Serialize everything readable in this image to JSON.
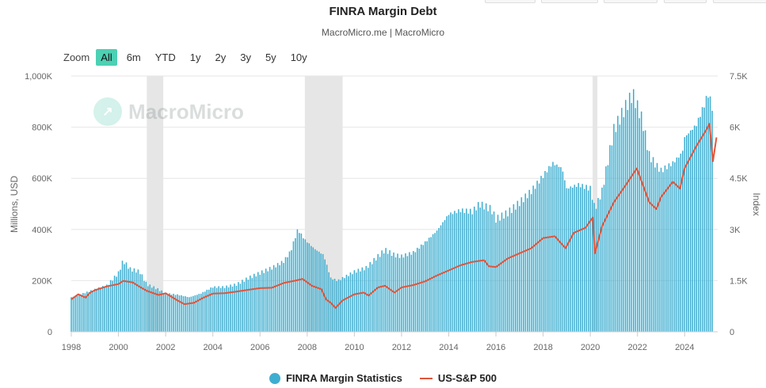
{
  "header": {
    "title": "FINRA Margin Debt",
    "subtitle": "MacroMicro.me | MacroMicro"
  },
  "zoom": {
    "label": "Zoom",
    "buttons": [
      "All",
      "6m",
      "YTD",
      "1y",
      "2y",
      "3y",
      "5y",
      "10y"
    ],
    "active": "All"
  },
  "watermark": {
    "text": "MacroMicro"
  },
  "legend": {
    "series1": "FINRA Margin Statistics",
    "series2": "US-S&P 500"
  },
  "colors": {
    "bar": "#3eaed0",
    "line": "#e0553c",
    "recession": "#e6e6e6",
    "grid": "#e6e6e6"
  },
  "chart_data": {
    "type": "bar",
    "title": "FINRA Margin Debt",
    "subtitle": "MacroMicro.me | MacroMicro",
    "ylabel": "Millions, USD",
    "y2label": "Index",
    "xlim": [
      1998,
      2025.4
    ],
    "ylim": [
      0,
      1000000
    ],
    "y2lim": [
      0,
      7500
    ],
    "x_ticks": [
      "1998",
      "2000",
      "2002",
      "2004",
      "2006",
      "2008",
      "2010",
      "2012",
      "2014",
      "2016",
      "2018",
      "2020",
      "2022",
      "2024"
    ],
    "y_ticks": [
      "0",
      "200K",
      "400K",
      "600K",
      "800K",
      "1,000K"
    ],
    "y2_ticks": [
      "0",
      "1.5K",
      "3K",
      "4.5K",
      "6K",
      "7.5K"
    ],
    "recessions": [
      [
        2001.2,
        2001.9
      ],
      [
        2007.9,
        2009.5
      ],
      [
        2020.1,
        2020.3
      ]
    ],
    "grid": true,
    "legend_position": "bottom",
    "series": [
      {
        "name": "FINRA Margin Statistics",
        "type": "bar",
        "axis": "left",
        "points": [
          [
            1998.0,
            135000
          ],
          [
            1998.5,
            150000
          ],
          [
            1999.0,
            165000
          ],
          [
            1999.5,
            180000
          ],
          [
            2000.0,
            230000
          ],
          [
            2000.2,
            278000
          ],
          [
            2000.5,
            245000
          ],
          [
            2000.9,
            235000
          ],
          [
            2001.2,
            185000
          ],
          [
            2001.6,
            170000
          ],
          [
            2002.0,
            150000
          ],
          [
            2002.5,
            145000
          ],
          [
            2003.0,
            135000
          ],
          [
            2003.5,
            150000
          ],
          [
            2004.0,
            175000
          ],
          [
            2004.5,
            175000
          ],
          [
            2005.0,
            185000
          ],
          [
            2005.5,
            210000
          ],
          [
            2006.0,
            230000
          ],
          [
            2006.5,
            250000
          ],
          [
            2007.0,
            275000
          ],
          [
            2007.3,
            315000
          ],
          [
            2007.6,
            400000
          ],
          [
            2007.9,
            360000
          ],
          [
            2008.3,
            325000
          ],
          [
            2008.7,
            300000
          ],
          [
            2009.0,
            210000
          ],
          [
            2009.3,
            200000
          ],
          [
            2009.7,
            220000
          ],
          [
            2010.0,
            235000
          ],
          [
            2010.5,
            250000
          ],
          [
            2011.0,
            295000
          ],
          [
            2011.3,
            320000
          ],
          [
            2011.7,
            300000
          ],
          [
            2012.0,
            295000
          ],
          [
            2012.5,
            310000
          ],
          [
            2013.0,
            350000
          ],
          [
            2013.5,
            395000
          ],
          [
            2014.0,
            460000
          ],
          [
            2014.5,
            475000
          ],
          [
            2015.0,
            470000
          ],
          [
            2015.3,
            500000
          ],
          [
            2015.8,
            480000
          ],
          [
            2016.0,
            440000
          ],
          [
            2016.5,
            465000
          ],
          [
            2017.0,
            505000
          ],
          [
            2017.5,
            550000
          ],
          [
            2018.0,
            610000
          ],
          [
            2018.4,
            660000
          ],
          [
            2018.8,
            640000
          ],
          [
            2019.0,
            560000
          ],
          [
            2019.5,
            575000
          ],
          [
            2020.0,
            560000
          ],
          [
            2020.2,
            480000
          ],
          [
            2020.5,
            550000
          ],
          [
            2021.0,
            790000
          ],
          [
            2021.5,
            880000
          ],
          [
            2021.8,
            930000
          ],
          [
            2022.2,
            830000
          ],
          [
            2022.5,
            690000
          ],
          [
            2022.8,
            650000
          ],
          [
            2023.0,
            630000
          ],
          [
            2023.5,
            660000
          ],
          [
            2023.9,
            700000
          ],
          [
            2024.0,
            760000
          ],
          [
            2024.5,
            810000
          ],
          [
            2024.8,
            880000
          ],
          [
            2025.0,
            930000
          ],
          [
            2025.2,
            870000
          ]
        ]
      },
      {
        "name": "US-S&P 500",
        "type": "line",
        "axis": "right",
        "points": [
          [
            1998.0,
            950
          ],
          [
            1998.3,
            1100
          ],
          [
            1998.6,
            1000
          ],
          [
            1998.8,
            1150
          ],
          [
            1999.0,
            1220
          ],
          [
            1999.5,
            1330
          ],
          [
            2000.0,
            1400
          ],
          [
            2000.2,
            1490
          ],
          [
            2000.6,
            1450
          ],
          [
            2000.9,
            1320
          ],
          [
            2001.2,
            1200
          ],
          [
            2001.7,
            1080
          ],
          [
            2002.0,
            1130
          ],
          [
            2002.5,
            920
          ],
          [
            2002.8,
            810
          ],
          [
            2003.2,
            850
          ],
          [
            2003.6,
            1000
          ],
          [
            2004.0,
            1120
          ],
          [
            2004.5,
            1130
          ],
          [
            2005.0,
            1180
          ],
          [
            2005.5,
            1230
          ],
          [
            2006.0,
            1280
          ],
          [
            2006.5,
            1290
          ],
          [
            2007.0,
            1430
          ],
          [
            2007.5,
            1500
          ],
          [
            2007.8,
            1550
          ],
          [
            2008.2,
            1350
          ],
          [
            2008.6,
            1250
          ],
          [
            2008.8,
            950
          ],
          [
            2009.0,
            850
          ],
          [
            2009.2,
            700
          ],
          [
            2009.5,
            920
          ],
          [
            2010.0,
            1100
          ],
          [
            2010.4,
            1150
          ],
          [
            2010.6,
            1060
          ],
          [
            2011.0,
            1300
          ],
          [
            2011.3,
            1350
          ],
          [
            2011.7,
            1150
          ],
          [
            2012.0,
            1300
          ],
          [
            2012.5,
            1370
          ],
          [
            2013.0,
            1480
          ],
          [
            2013.5,
            1650
          ],
          [
            2014.0,
            1800
          ],
          [
            2014.5,
            1950
          ],
          [
            2015.0,
            2050
          ],
          [
            2015.5,
            2100
          ],
          [
            2015.7,
            1920
          ],
          [
            2016.0,
            1900
          ],
          [
            2016.5,
            2150
          ],
          [
            2017.0,
            2300
          ],
          [
            2017.5,
            2450
          ],
          [
            2018.0,
            2750
          ],
          [
            2018.5,
            2800
          ],
          [
            2018.95,
            2450
          ],
          [
            2019.3,
            2900
          ],
          [
            2019.8,
            3050
          ],
          [
            2020.1,
            3350
          ],
          [
            2020.2,
            2300
          ],
          [
            2020.5,
            3100
          ],
          [
            2021.0,
            3800
          ],
          [
            2021.5,
            4300
          ],
          [
            2021.97,
            4790
          ],
          [
            2022.5,
            3800
          ],
          [
            2022.8,
            3600
          ],
          [
            2023.0,
            3950
          ],
          [
            2023.5,
            4400
          ],
          [
            2023.8,
            4200
          ],
          [
            2024.0,
            4800
          ],
          [
            2024.5,
            5450
          ],
          [
            2024.9,
            5900
          ],
          [
            2025.05,
            6100
          ],
          [
            2025.2,
            5000
          ],
          [
            2025.35,
            5700
          ]
        ]
      }
    ]
  }
}
